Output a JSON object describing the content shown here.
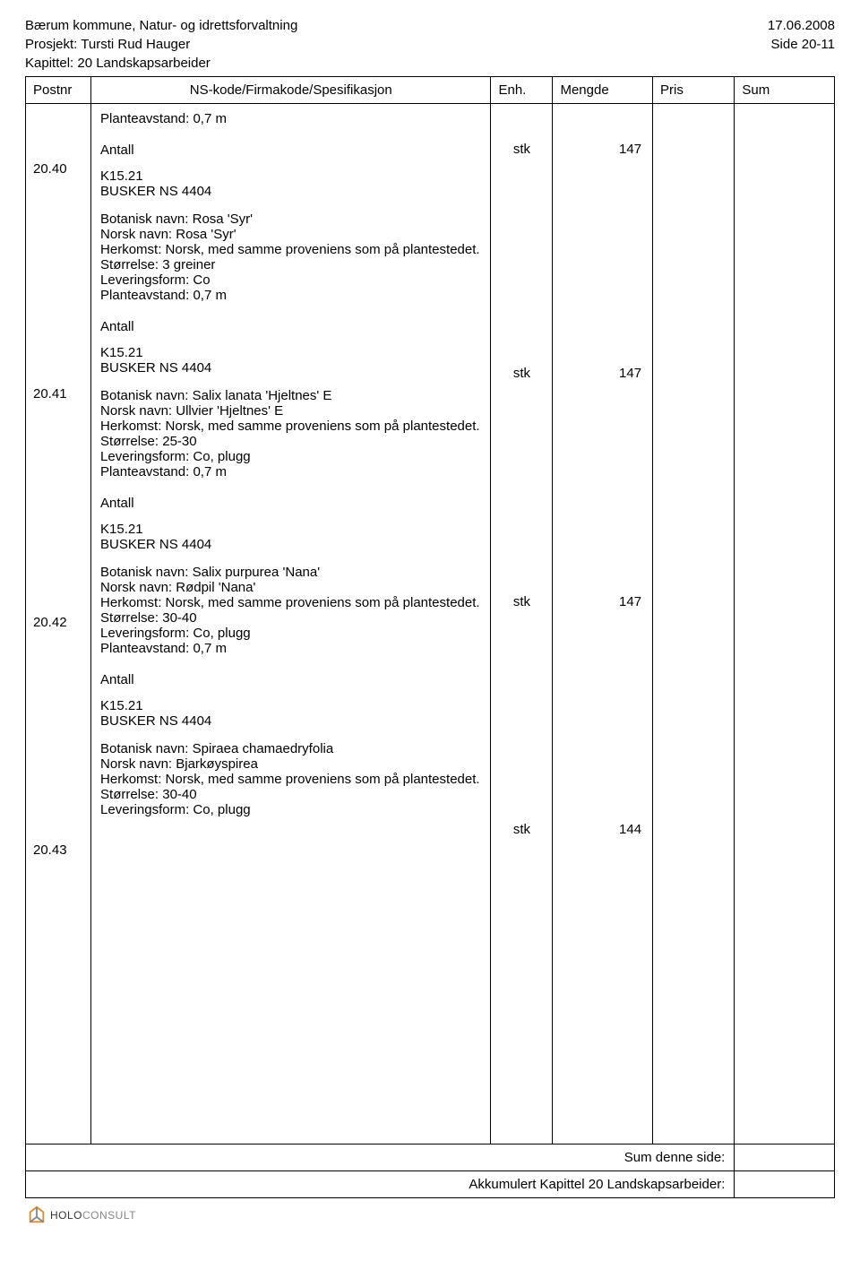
{
  "background_color": "#ffffff",
  "text_color": "#000000",
  "border_color": "#000000",
  "font_size_body": 15,
  "header": {
    "org": "Bærum kommune, Natur- og idrettsforvaltning",
    "date": "17.06.2008",
    "project": "Prosjekt: Tursti Rud Hauger",
    "page": "Side 20-11",
    "chapter": "Kapittel: 20 Landskapsarbeider"
  },
  "columns": {
    "postnr": "Postnr",
    "spec": "NS-kode/Firmakode/Spesifikasjon",
    "enh": "Enh.",
    "mengde": "Mengde",
    "pris": "Pris",
    "sum": "Sum"
  },
  "intro_line": "Planteavstand: 0,7 m",
  "antall_label": "Antall",
  "items": [
    {
      "postnr": "20.40",
      "code": "K15.21",
      "subcode": "BUSKER NS 4404",
      "enh": "stk",
      "mengde": "147",
      "lines": [
        "Botanisk navn: Rosa 'Syr'",
        "Norsk navn: Rosa 'Syr'",
        "Herkomst: Norsk, med samme proveniens som på plantestedet.",
        "Størrelse: 3 greiner",
        "Leveringsform: Co",
        "Planteavstand: 0,7 m"
      ]
    },
    {
      "postnr": "20.41",
      "code": "K15.21",
      "subcode": "BUSKER NS 4404",
      "enh": "stk",
      "mengde": "147",
      "lines": [
        "Botanisk navn: Salix lanata 'Hjeltnes' E",
        "Norsk navn: Ullvier 'Hjeltnes' E",
        "Herkomst: Norsk, med samme proveniens som på plantestedet.",
        "Størrelse: 25-30",
        "Leveringsform: Co, plugg",
        "Planteavstand: 0,7 m"
      ]
    },
    {
      "postnr": "20.42",
      "code": "K15.21",
      "subcode": "BUSKER NS 4404",
      "enh": "stk",
      "mengde": "147",
      "lines": [
        "Botanisk navn: Salix purpurea 'Nana'",
        "Norsk navn: Rødpil 'Nana'",
        "Herkomst: Norsk, med samme proveniens som på plantestedet.",
        "Størrelse: 30-40",
        "Leveringsform: Co, plugg",
        "Planteavstand: 0,7 m"
      ]
    },
    {
      "postnr": "20.43",
      "code": "K15.21",
      "subcode": "BUSKER NS 4404",
      "enh": "stk",
      "mengde": "144",
      "lines": [
        "Botanisk navn: Spiraea chamaedryfolia",
        "Norsk navn: Bjarkøyspirea",
        "Herkomst: Norsk, med samme proveniens som på plantestedet.",
        "Størrelse: 30-40",
        "Leveringsform: Co, plugg"
      ]
    }
  ],
  "positions": {
    "antall_tops": [
      42,
      292,
      547,
      801
    ],
    "postnr_tops": [
      64,
      315,
      570,
      824
    ]
  },
  "footer": {
    "line1": "Sum denne side:",
    "line2": "Akkumulert Kapittel 20 Landskapsarbeider:"
  },
  "logo": {
    "brand1": "HOLO",
    "brand2": "CONSULT",
    "colors": {
      "orange": "#e08a2a",
      "gray": "#7c8a8f"
    }
  }
}
